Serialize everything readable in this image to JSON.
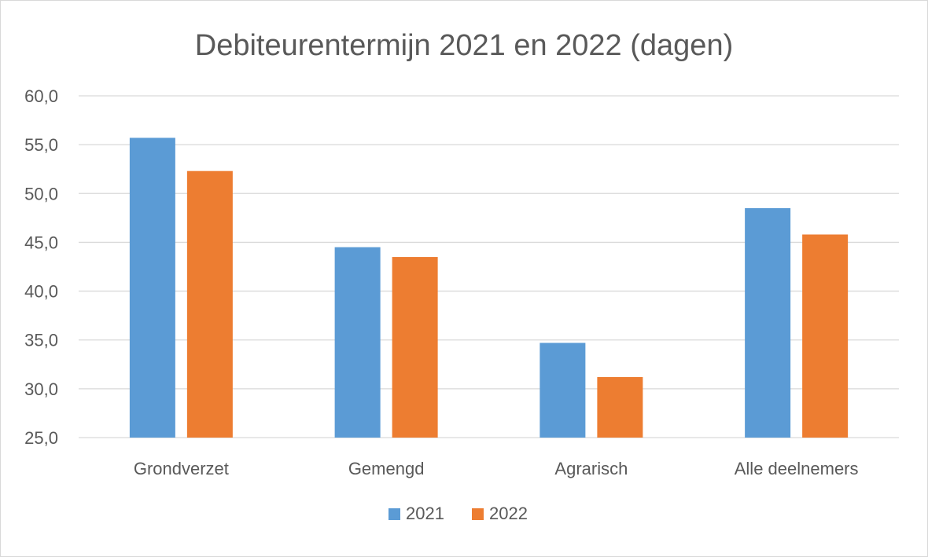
{
  "chart_data": {
    "type": "bar",
    "title": "Debiteurentermijn 2021 en 2022 (dagen)",
    "categories": [
      "Grondverzet",
      "Gemengd",
      "Agrarisch",
      "Alle deelnemers"
    ],
    "series": [
      {
        "name": "2021",
        "color": "#5b9bd5",
        "values": [
          55.7,
          44.5,
          34.7,
          48.5
        ]
      },
      {
        "name": "2022",
        "color": "#ed7d31",
        "values": [
          52.3,
          43.5,
          31.2,
          45.8
        ]
      }
    ],
    "ylim": [
      25,
      60
    ],
    "yticks": [
      25,
      30,
      35,
      40,
      45,
      50,
      55,
      60
    ],
    "ytick_labels": [
      "25,0",
      "30,0",
      "35,0",
      "40,0",
      "45,0",
      "50,0",
      "55,0",
      "60,0"
    ],
    "grid": true,
    "legend": "bottom",
    "xlabel": "",
    "ylabel": ""
  }
}
